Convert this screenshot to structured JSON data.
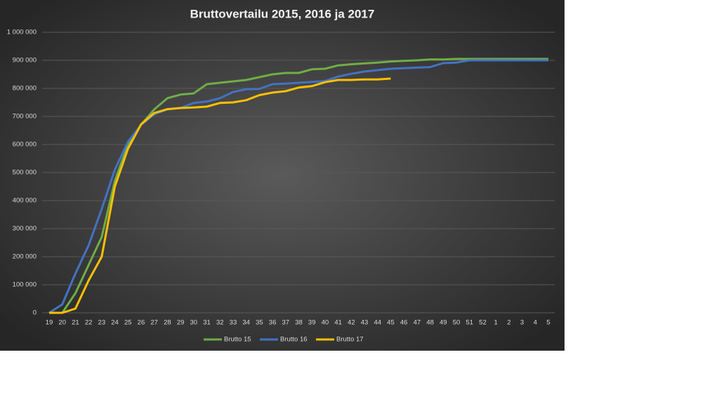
{
  "chart_data": {
    "type": "line",
    "title": "Bruttovertailu  2015, 2016 ja 2017",
    "categories": [
      "19",
      "20",
      "21",
      "22",
      "23",
      "24",
      "25",
      "26",
      "27",
      "28",
      "29",
      "30",
      "31",
      "32",
      "33",
      "34",
      "35",
      "36",
      "37",
      "38",
      "39",
      "40",
      "41",
      "42",
      "43",
      "44",
      "45",
      "46",
      "47",
      "48",
      "49",
      "50",
      "51",
      "52",
      "1",
      "2",
      "3",
      "4",
      "5"
    ],
    "series": [
      {
        "name": "Brutto 15",
        "color": "#70ad47",
        "values": [
          0,
          0,
          70000,
          170000,
          270000,
          470000,
          600000,
          670000,
          725000,
          765000,
          778000,
          782000,
          815000,
          820000,
          825000,
          830000,
          840000,
          850000,
          855000,
          855000,
          868000,
          870000,
          882000,
          886000,
          889000,
          892000,
          896000,
          898000,
          900000,
          903000,
          903000,
          905000,
          905000,
          905000,
          905000,
          905000,
          905000,
          905000,
          905000
        ]
      },
      {
        "name": "Brutto 16",
        "color": "#4472c4",
        "values": [
          0,
          30000,
          140000,
          240000,
          370000,
          510000,
          610000,
          670000,
          708000,
          725000,
          730000,
          748000,
          753000,
          765000,
          787000,
          797000,
          798000,
          815000,
          817000,
          820000,
          823000,
          826000,
          842000,
          852000,
          860000,
          865000,
          870000,
          872000,
          874000,
          876000,
          890000,
          892000,
          900000,
          900000,
          900000,
          900000,
          900000,
          900000,
          900000
        ]
      },
      {
        "name": "Brutto 17",
        "color": "#ffc000",
        "values": [
          0,
          0,
          15000,
          115000,
          200000,
          450000,
          585000,
          672000,
          712000,
          726000,
          730000,
          732000,
          735000,
          748000,
          750000,
          758000,
          776000,
          785000,
          790000,
          803000,
          808000,
          822000,
          830000,
          830000,
          832000,
          832000,
          835000,
          null,
          null,
          null,
          null,
          null,
          null,
          null,
          null,
          null,
          null,
          null,
          null
        ]
      }
    ],
    "ylim": [
      0,
      1000000
    ],
    "yticks": [
      0,
      {
        "value": 100000,
        "label": "100 000"
      },
      {
        "value": 200000,
        "label": "200 000"
      },
      {
        "value": 300000,
        "label": "300 000"
      },
      {
        "value": 400000,
        "label": "400 000"
      },
      {
        "value": 500000,
        "label": "500 000"
      },
      {
        "value": 600000,
        "label": "600 000"
      },
      {
        "value": 700000,
        "label": "700 000"
      },
      {
        "value": 800000,
        "label": "800 000"
      },
      {
        "value": 900000,
        "label": "900 000"
      },
      {
        "value": 1000000,
        "label": "1 000 000"
      }
    ],
    "grid": true,
    "legend": "bottom"
  }
}
